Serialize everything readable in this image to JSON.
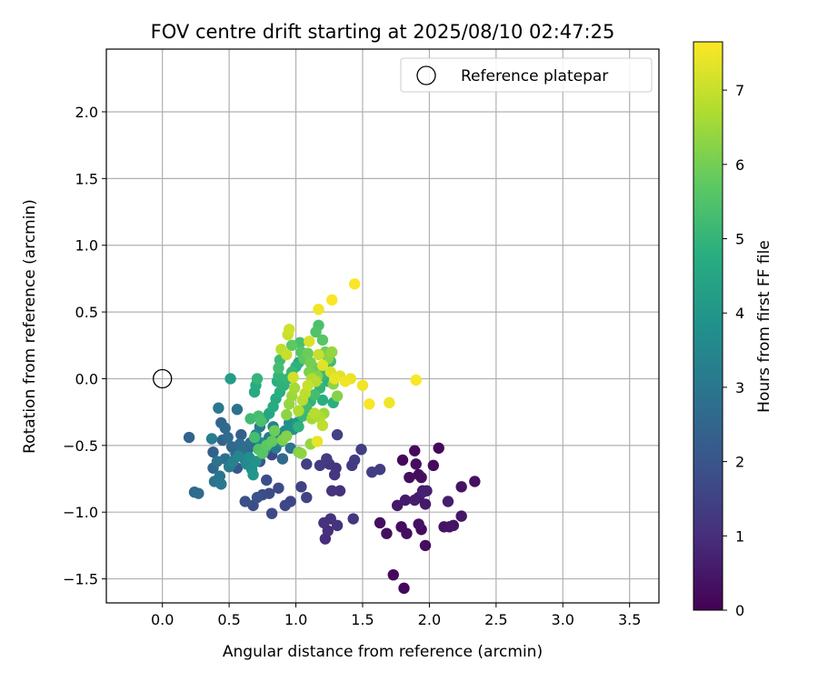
{
  "chart_data": {
    "type": "scatter",
    "title": "FOV centre drift starting at 2025/08/10 02:47:25",
    "xlabel": "Angular distance from reference (arcmin)",
    "ylabel": "Rotation from reference (arcmin)",
    "xlim": [
      -0.42,
      3.72
    ],
    "ylim": [
      -1.68,
      2.47
    ],
    "xticks": [
      "0.0",
      "0.5",
      "1.0",
      "1.5",
      "2.0",
      "2.5",
      "3.0",
      "3.5"
    ],
    "yticks": [
      "2.0",
      "1.5",
      "1.0",
      "0.5",
      "0.0",
      "−0.5",
      "−1.0",
      "−1.5"
    ],
    "grid": true,
    "legend": {
      "placement": "top-right",
      "entries": [
        {
          "label": "Reference platepar",
          "marker": "open-circle",
          "x": 0.0,
          "y": 0.0
        }
      ]
    },
    "colorbar": {
      "label": "Hours from first FF file",
      "min": 0,
      "max": 7.65,
      "ticks": [
        "0",
        "1",
        "2",
        "3",
        "4",
        "5",
        "6",
        "7"
      ],
      "colormap": "viridis"
    },
    "points": [
      {
        "x": 1.81,
        "y": -1.57,
        "h": 0.15
      },
      {
        "x": 1.73,
        "y": -1.47,
        "h": 0.2
      },
      {
        "x": 1.97,
        "y": -1.25,
        "h": 0.25
      },
      {
        "x": 1.68,
        "y": -1.16,
        "h": 0.3
      },
      {
        "x": 1.79,
        "y": -1.11,
        "h": 0.25
      },
      {
        "x": 1.63,
        "y": -1.08,
        "h": 0.3
      },
      {
        "x": 1.92,
        "y": -1.09,
        "h": 0.35
      },
      {
        "x": 1.83,
        "y": -1.16,
        "h": 0.3
      },
      {
        "x": 1.94,
        "y": -1.13,
        "h": 0.2
      },
      {
        "x": 2.15,
        "y": -1.11,
        "h": 0.45
      },
      {
        "x": 2.11,
        "y": -1.11,
        "h": 0.4
      },
      {
        "x": 2.18,
        "y": -1.1,
        "h": 0.4
      },
      {
        "x": 2.24,
        "y": -1.03,
        "h": 0.45
      },
      {
        "x": 1.76,
        "y": -0.95,
        "h": 0.5
      },
      {
        "x": 1.82,
        "y": -0.91,
        "h": 0.55
      },
      {
        "x": 1.89,
        "y": -0.91,
        "h": 0.6
      },
      {
        "x": 1.92,
        "y": -0.89,
        "h": 0.5
      },
      {
        "x": 1.97,
        "y": -0.94,
        "h": 0.55
      },
      {
        "x": 2.14,
        "y": -0.92,
        "h": 0.6
      },
      {
        "x": 1.95,
        "y": -0.84,
        "h": 0.45
      },
      {
        "x": 2.24,
        "y": -0.81,
        "h": 0.4
      },
      {
        "x": 2.34,
        "y": -0.77,
        "h": 0.35
      },
      {
        "x": 1.85,
        "y": -0.74,
        "h": 0.3
      },
      {
        "x": 1.92,
        "y": -0.72,
        "h": 0.25
      },
      {
        "x": 1.94,
        "y": -0.74,
        "h": 0.3
      },
      {
        "x": 1.9,
        "y": -0.64,
        "h": 0.25
      },
      {
        "x": 2.03,
        "y": -0.65,
        "h": 0.2
      },
      {
        "x": 1.8,
        "y": -0.61,
        "h": 0.15
      },
      {
        "x": 1.89,
        "y": -0.54,
        "h": 0.2
      },
      {
        "x": 2.07,
        "y": -0.52,
        "h": 0.15
      },
      {
        "x": 1.95,
        "y": -0.85,
        "h": 0.7
      },
      {
        "x": 1.98,
        "y": -0.84,
        "h": 0.65
      },
      {
        "x": 1.21,
        "y": -1.08,
        "h": 1.1
      },
      {
        "x": 1.24,
        "y": -1.14,
        "h": 1.0
      },
      {
        "x": 1.26,
        "y": -1.05,
        "h": 1.05
      },
      {
        "x": 1.22,
        "y": -1.2,
        "h": 0.95
      },
      {
        "x": 1.31,
        "y": -1.1,
        "h": 1.1
      },
      {
        "x": 1.43,
        "y": -1.05,
        "h": 1.2
      },
      {
        "x": 1.27,
        "y": -0.84,
        "h": 1.1
      },
      {
        "x": 1.33,
        "y": -0.84,
        "h": 1.05
      },
      {
        "x": 1.29,
        "y": -0.72,
        "h": 1.2
      },
      {
        "x": 1.3,
        "y": -0.67,
        "h": 1.15
      },
      {
        "x": 1.23,
        "y": -0.6,
        "h": 1.3
      },
      {
        "x": 1.25,
        "y": -0.64,
        "h": 1.25
      },
      {
        "x": 1.18,
        "y": -0.65,
        "h": 1.35
      },
      {
        "x": 1.42,
        "y": -0.65,
        "h": 1.3
      },
      {
        "x": 1.44,
        "y": -0.61,
        "h": 1.35
      },
      {
        "x": 1.49,
        "y": -0.53,
        "h": 1.4
      },
      {
        "x": 1.31,
        "y": -0.42,
        "h": 1.5
      },
      {
        "x": 1.57,
        "y": -0.7,
        "h": 1.4
      },
      {
        "x": 1.63,
        "y": -0.68,
        "h": 1.35
      },
      {
        "x": 1.08,
        "y": -0.64,
        "h": 1.45
      },
      {
        "x": 1.04,
        "y": -0.81,
        "h": 1.5
      },
      {
        "x": 1.08,
        "y": -0.89,
        "h": 1.55
      },
      {
        "x": 0.96,
        "y": -0.92,
        "h": 1.6
      },
      {
        "x": 0.92,
        "y": -0.95,
        "h": 1.65
      },
      {
        "x": 0.82,
        "y": -1.01,
        "h": 1.7
      },
      {
        "x": 0.87,
        "y": -0.82,
        "h": 1.75
      },
      {
        "x": 0.75,
        "y": -0.87,
        "h": 1.8
      },
      {
        "x": 0.8,
        "y": -0.86,
        "h": 1.75
      },
      {
        "x": 0.68,
        "y": -0.95,
        "h": 1.8
      },
      {
        "x": 0.62,
        "y": -0.92,
        "h": 1.85
      },
      {
        "x": 0.71,
        "y": -0.89,
        "h": 1.9
      },
      {
        "x": 0.82,
        "y": -0.57,
        "h": 1.6
      },
      {
        "x": 0.9,
        "y": -0.6,
        "h": 1.7
      },
      {
        "x": 0.78,
        "y": -0.76,
        "h": 1.8
      },
      {
        "x": 0.73,
        "y": -0.62,
        "h": 2.0
      },
      {
        "x": 0.56,
        "y": -0.67,
        "h": 2.1
      },
      {
        "x": 0.2,
        "y": -0.44,
        "h": 2.4
      },
      {
        "x": 0.24,
        "y": -0.85,
        "h": 2.6
      },
      {
        "x": 0.27,
        "y": -0.86,
        "h": 2.7
      },
      {
        "x": 0.38,
        "y": -0.55,
        "h": 2.3
      },
      {
        "x": 0.38,
        "y": -0.67,
        "h": 2.5
      },
      {
        "x": 0.39,
        "y": -0.77,
        "h": 2.9
      },
      {
        "x": 0.43,
        "y": -0.73,
        "h": 3.0
      },
      {
        "x": 0.44,
        "y": -0.79,
        "h": 3.1
      },
      {
        "x": 0.41,
        "y": -0.62,
        "h": 2.9
      },
      {
        "x": 0.47,
        "y": -0.6,
        "h": 2.8
      },
      {
        "x": 0.45,
        "y": -0.46,
        "h": 2.4
      },
      {
        "x": 0.44,
        "y": -0.33,
        "h": 2.5
      },
      {
        "x": 0.47,
        "y": -0.37,
        "h": 2.6
      },
      {
        "x": 0.49,
        "y": -0.44,
        "h": 2.7
      },
      {
        "x": 0.52,
        "y": -0.51,
        "h": 2.5
      },
      {
        "x": 0.55,
        "y": -0.56,
        "h": 2.6
      },
      {
        "x": 0.58,
        "y": -0.49,
        "h": 2.7
      },
      {
        "x": 0.6,
        "y": -0.55,
        "h": 2.8
      },
      {
        "x": 0.62,
        "y": -0.61,
        "h": 2.9
      },
      {
        "x": 0.64,
        "y": -0.53,
        "h": 2.6
      },
      {
        "x": 0.66,
        "y": -0.48,
        "h": 2.7
      },
      {
        "x": 0.59,
        "y": -0.42,
        "h": 2.3
      },
      {
        "x": 0.56,
        "y": -0.23,
        "h": 2.9
      },
      {
        "x": 0.42,
        "y": -0.22,
        "h": 3.1
      },
      {
        "x": 0.37,
        "y": -0.45,
        "h": 3.2
      },
      {
        "x": 0.5,
        "y": -0.66,
        "h": 3.2
      },
      {
        "x": 0.53,
        "y": -0.62,
        "h": 3.4
      },
      {
        "x": 0.57,
        "y": -0.58,
        "h": 3.5
      },
      {
        "x": 0.63,
        "y": -0.64,
        "h": 3.6
      },
      {
        "x": 0.65,
        "y": -0.59,
        "h": 3.7
      },
      {
        "x": 0.67,
        "y": -0.68,
        "h": 3.8
      },
      {
        "x": 0.7,
        "y": -0.62,
        "h": 3.9
      },
      {
        "x": 0.68,
        "y": -0.72,
        "h": 4.0
      },
      {
        "x": 0.7,
        "y": -0.42,
        "h": 3.5
      },
      {
        "x": 0.74,
        "y": -0.48,
        "h": 3.6
      },
      {
        "x": 0.77,
        "y": -0.53,
        "h": 3.8
      },
      {
        "x": 0.8,
        "y": -0.44,
        "h": 3.2
      },
      {
        "x": 0.83,
        "y": -0.36,
        "h": 3.3
      },
      {
        "x": 0.86,
        "y": -0.41,
        "h": 3.5
      },
      {
        "x": 0.89,
        "y": -0.47,
        "h": 3.6
      },
      {
        "x": 0.92,
        "y": -0.39,
        "h": 3.7
      },
      {
        "x": 0.95,
        "y": -0.33,
        "h": 3.8
      },
      {
        "x": 0.98,
        "y": -0.38,
        "h": 3.9
      },
      {
        "x": 1.01,
        "y": -0.33,
        "h": 4.0
      },
      {
        "x": 0.9,
        "y": -0.6,
        "h": 2.6
      },
      {
        "x": 0.96,
        "y": -0.52,
        "h": 2.9
      },
      {
        "x": 0.85,
        "y": -0.52,
        "h": 3.1
      },
      {
        "x": 0.73,
        "y": -0.36,
        "h": 3.0
      },
      {
        "x": 0.69,
        "y": -0.1,
        "h": 4.6
      },
      {
        "x": 0.51,
        "y": 0.0,
        "h": 4.2
      },
      {
        "x": 0.7,
        "y": -0.05,
        "h": 4.7
      },
      {
        "x": 0.71,
        "y": 0.0,
        "h": 5.0
      },
      {
        "x": 0.76,
        "y": -0.3,
        "h": 4.4
      },
      {
        "x": 0.8,
        "y": -0.26,
        "h": 4.5
      },
      {
        "x": 0.83,
        "y": -0.21,
        "h": 4.7
      },
      {
        "x": 0.85,
        "y": -0.15,
        "h": 4.6
      },
      {
        "x": 0.88,
        "y": -0.1,
        "h": 4.8
      },
      {
        "x": 0.91,
        "y": -0.05,
        "h": 4.9
      },
      {
        "x": 0.86,
        "y": -0.02,
        "h": 4.8
      },
      {
        "x": 0.94,
        "y": 0.0,
        "h": 5.0
      },
      {
        "x": 0.97,
        "y": 0.05,
        "h": 5.1
      },
      {
        "x": 1.0,
        "y": 0.09,
        "h": 4.9
      },
      {
        "x": 1.02,
        "y": 0.12,
        "h": 4.6
      },
      {
        "x": 0.87,
        "y": 0.08,
        "h": 5.3
      },
      {
        "x": 0.88,
        "y": 0.14,
        "h": 5.2
      },
      {
        "x": 0.87,
        "y": 0.02,
        "h": 5.0
      },
      {
        "x": 1.02,
        "y": -0.36,
        "h": 4.9
      },
      {
        "x": 1.05,
        "y": -0.28,
        "h": 5.1
      },
      {
        "x": 1.08,
        "y": -0.22,
        "h": 5.2
      },
      {
        "x": 1.11,
        "y": -0.17,
        "h": 5.0
      },
      {
        "x": 1.14,
        "y": -0.12,
        "h": 5.3
      },
      {
        "x": 1.18,
        "y": -0.07,
        "h": 5.0
      },
      {
        "x": 1.19,
        "y": 0.02,
        "h": 5.1
      },
      {
        "x": 1.23,
        "y": 0.08,
        "h": 5.0
      },
      {
        "x": 1.26,
        "y": 0.13,
        "h": 5.2
      },
      {
        "x": 1.28,
        "y": -0.18,
        "h": 4.8
      },
      {
        "x": 1.24,
        "y": -0.02,
        "h": 4.9
      },
      {
        "x": 1.2,
        "y": -0.16,
        "h": 4.8
      },
      {
        "x": 1.17,
        "y": 0.4,
        "h": 5.4
      },
      {
        "x": 1.15,
        "y": 0.35,
        "h": 5.5
      },
      {
        "x": 1.2,
        "y": 0.29,
        "h": 5.6
      },
      {
        "x": 1.03,
        "y": 0.27,
        "h": 5.4
      },
      {
        "x": 0.97,
        "y": 0.25,
        "h": 5.7
      },
      {
        "x": 1.04,
        "y": 0.2,
        "h": 5.6
      },
      {
        "x": 1.06,
        "y": 0.15,
        "h": 5.7
      },
      {
        "x": 1.09,
        "y": 0.19,
        "h": 5.9
      },
      {
        "x": 1.11,
        "y": 0.12,
        "h": 6.0
      },
      {
        "x": 1.14,
        "y": 0.08,
        "h": 5.8
      },
      {
        "x": 1.1,
        "y": 0.05,
        "h": 6.1
      },
      {
        "x": 1.16,
        "y": 0.02,
        "h": 6.2
      },
      {
        "x": 1.22,
        "y": 0.2,
        "h": 6.0
      },
      {
        "x": 1.24,
        "y": 0.15,
        "h": 6.3
      },
      {
        "x": 1.27,
        "y": 0.2,
        "h": 6.4
      },
      {
        "x": 1.31,
        "y": -0.13,
        "h": 6.2
      },
      {
        "x": 1.28,
        "y": -0.04,
        "h": 6.3
      },
      {
        "x": 0.9,
        "y": -0.46,
        "h": 6.1
      },
      {
        "x": 0.93,
        "y": -0.43,
        "h": 6.2
      },
      {
        "x": 0.84,
        "y": -0.39,
        "h": 5.9
      },
      {
        "x": 0.82,
        "y": -0.47,
        "h": 5.8
      },
      {
        "x": 0.78,
        "y": -0.5,
        "h": 5.7
      },
      {
        "x": 0.75,
        "y": -0.56,
        "h": 5.6
      },
      {
        "x": 0.72,
        "y": -0.53,
        "h": 5.5
      },
      {
        "x": 0.69,
        "y": -0.44,
        "h": 5.3
      },
      {
        "x": 0.66,
        "y": -0.3,
        "h": 5.2
      },
      {
        "x": 0.72,
        "y": -0.28,
        "h": 5.3
      },
      {
        "x": 0.74,
        "y": -0.32,
        "h": 5.4
      },
      {
        "x": 1.02,
        "y": -0.55,
        "h": 6.2
      },
      {
        "x": 1.04,
        "y": -0.56,
        "h": 6.3
      },
      {
        "x": 1.11,
        "y": -0.49,
        "h": 6.4
      },
      {
        "x": 1.12,
        "y": -0.3,
        "h": 6.6
      },
      {
        "x": 1.14,
        "y": -0.26,
        "h": 6.8
      },
      {
        "x": 1.18,
        "y": -0.29,
        "h": 6.7
      },
      {
        "x": 1.2,
        "y": -0.35,
        "h": 6.9
      },
      {
        "x": 1.21,
        "y": -0.26,
        "h": 6.5
      },
      {
        "x": 0.93,
        "y": -0.27,
        "h": 6.3
      },
      {
        "x": 0.95,
        "y": -0.19,
        "h": 6.4
      },
      {
        "x": 0.97,
        "y": -0.13,
        "h": 6.5
      },
      {
        "x": 0.99,
        "y": -0.07,
        "h": 6.6
      },
      {
        "x": 1.02,
        "y": -0.24,
        "h": 6.7
      },
      {
        "x": 1.05,
        "y": -0.16,
        "h": 6.8
      },
      {
        "x": 1.07,
        "y": -0.11,
        "h": 6.9
      },
      {
        "x": 1.09,
        "y": -0.05,
        "h": 7.0
      },
      {
        "x": 1.12,
        "y": 0.0,
        "h": 6.7
      },
      {
        "x": 1.15,
        "y": -0.02,
        "h": 6.8
      },
      {
        "x": 0.89,
        "y": 0.22,
        "h": 6.9
      },
      {
        "x": 0.93,
        "y": 0.18,
        "h": 7.0
      },
      {
        "x": 0.95,
        "y": 0.37,
        "h": 7.1
      },
      {
        "x": 0.94,
        "y": 0.33,
        "h": 7.0
      },
      {
        "x": 0.98,
        "y": 0.01,
        "h": 7.1
      },
      {
        "x": 1.1,
        "y": 0.28,
        "h": 7.2
      },
      {
        "x": 1.17,
        "y": 0.18,
        "h": 7.0
      },
      {
        "x": 1.2,
        "y": 0.1,
        "h": 7.3
      },
      {
        "x": 1.26,
        "y": 0.05,
        "h": 7.2
      },
      {
        "x": 1.29,
        "y": 0.0,
        "h": 7.4
      },
      {
        "x": 1.33,
        "y": 0.02,
        "h": 7.3
      },
      {
        "x": 1.37,
        "y": -0.02,
        "h": 7.5
      },
      {
        "x": 1.41,
        "y": 0.0,
        "h": 7.4
      },
      {
        "x": 1.5,
        "y": -0.05,
        "h": 7.5
      },
      {
        "x": 1.55,
        "y": -0.19,
        "h": 7.6
      },
      {
        "x": 1.7,
        "y": -0.18,
        "h": 7.5
      },
      {
        "x": 1.9,
        "y": -0.01,
        "h": 7.6
      },
      {
        "x": 1.16,
        "y": -0.47,
        "h": 7.4
      },
      {
        "x": 1.17,
        "y": 0.52,
        "h": 7.5
      },
      {
        "x": 1.27,
        "y": 0.59,
        "h": 7.6
      },
      {
        "x": 1.44,
        "y": 0.71,
        "h": 7.6
      }
    ]
  }
}
